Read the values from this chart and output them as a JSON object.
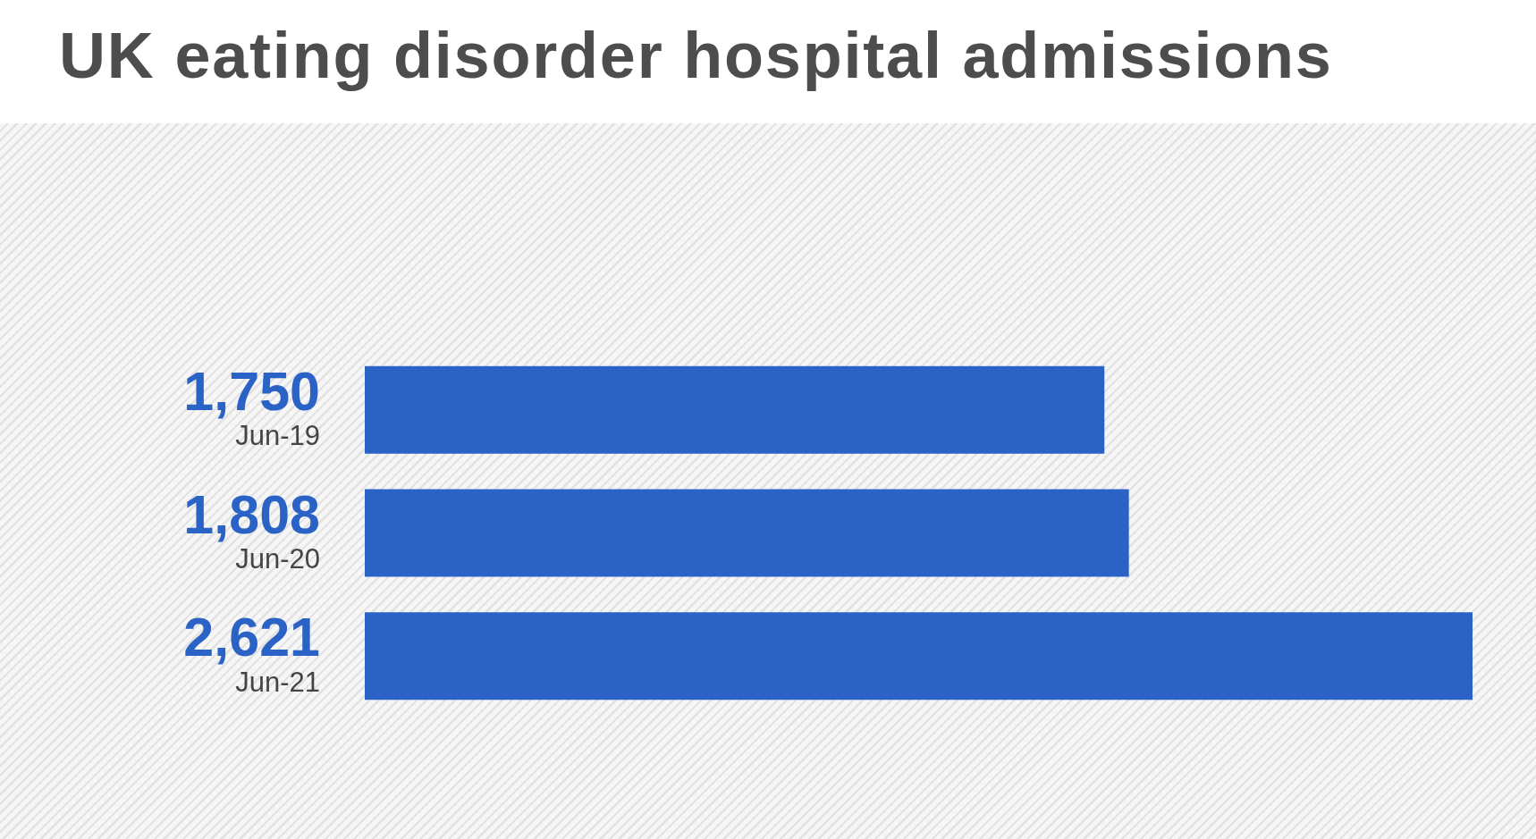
{
  "chart_data": {
    "type": "bar",
    "orientation": "horizontal",
    "title": "UK eating disorder hospital admissions",
    "categories": [
      "Jun-19",
      "Jun-20",
      "Jun-21"
    ],
    "values": [
      1750,
      1808,
      2621
    ],
    "value_labels": [
      "1,750",
      "1,808",
      "2,621"
    ],
    "color": "#2b62c6",
    "tick_labels": "y",
    "legend": false
  }
}
